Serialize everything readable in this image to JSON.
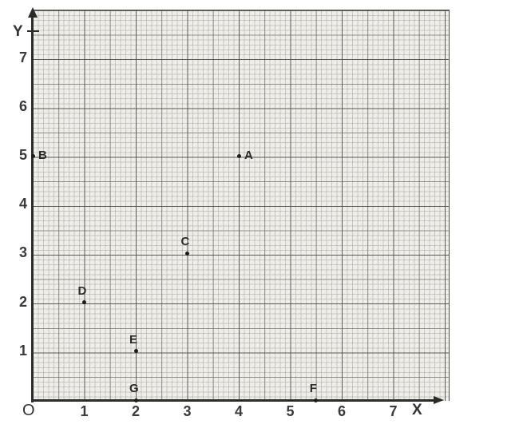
{
  "chart_data": {
    "type": "scatter",
    "title": "",
    "xlabel": "X",
    "ylabel": "Y",
    "origin_label": "O",
    "x_ticks": [
      1,
      2,
      3,
      4,
      5,
      6,
      7
    ],
    "y_ticks": [
      1,
      2,
      3,
      4,
      5,
      6,
      7
    ],
    "xlim": [
      0,
      8.1
    ],
    "ylim": [
      0,
      8
    ],
    "grid": "graph-paper (fine 0.1, medium 0.5, heavy 1.0 unit lines)",
    "legend": "none",
    "points": [
      {
        "label": "A",
        "x": 4,
        "y": 5,
        "label_side": "right"
      },
      {
        "label": "B",
        "x": 0,
        "y": 5,
        "label_side": "right"
      },
      {
        "label": "C",
        "x": 3,
        "y": 3,
        "label_side": "above"
      },
      {
        "label": "D",
        "x": 1,
        "y": 2,
        "label_side": "above"
      },
      {
        "label": "E",
        "x": 2,
        "y": 1,
        "label_side": "above"
      },
      {
        "label": "F",
        "x": 5.5,
        "y": 0,
        "label_side": "above"
      },
      {
        "label": "G",
        "x": 2,
        "y": 0,
        "label_side": "above"
      }
    ]
  },
  "style": {
    "paper_color": "#f2f1ed",
    "axis_color": "#2b2b2b",
    "point_color": "#1c1c1c",
    "tick_label_color": "#3a3a3a"
  }
}
